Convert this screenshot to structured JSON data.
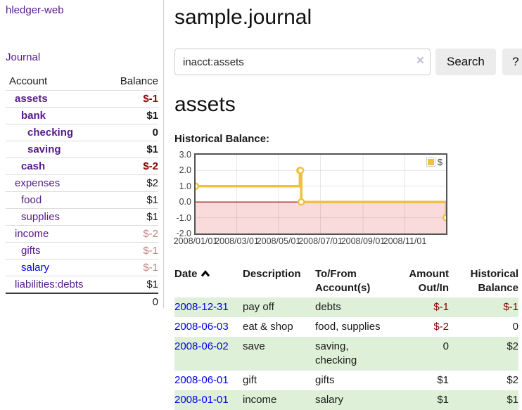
{
  "colors": {
    "link_purple": "#551a8b",
    "link_blue": "#0000ee",
    "negative": "#880000",
    "negative_faded": "#c38080",
    "row_stripe_green": "#dff0d8",
    "button_gray": "#ececec",
    "chart_border": "#545454"
  },
  "sidebar": {
    "app_title": "hledger-web",
    "journal_label": "Journal",
    "accounts": {
      "headers": {
        "account": "Account",
        "balance": "Balance"
      },
      "rows": [
        {
          "name": "assets",
          "balance": "$-1",
          "indent": 1,
          "bold": true,
          "name_color": "purple",
          "balance_style": "neg"
        },
        {
          "name": "bank",
          "balance": "$1",
          "indent": 2,
          "bold": true,
          "name_color": "purple",
          "balance_style": "pos"
        },
        {
          "name": "checking",
          "balance": "0",
          "indent": 3,
          "bold": true,
          "name_color": "purple",
          "balance_style": "pos"
        },
        {
          "name": "saving",
          "balance": "$1",
          "indent": 3,
          "bold": true,
          "name_color": "purple",
          "balance_style": "pos"
        },
        {
          "name": "cash",
          "balance": "$-2",
          "indent": 2,
          "bold": true,
          "name_color": "purple",
          "balance_style": "neg"
        },
        {
          "name": "expenses",
          "balance": "$2",
          "indent": 1,
          "bold": false,
          "name_color": "purple",
          "balance_style": "pos"
        },
        {
          "name": "food",
          "balance": "$1",
          "indent": 2,
          "bold": false,
          "name_color": "purple",
          "balance_style": "pos"
        },
        {
          "name": "supplies",
          "balance": "$1",
          "indent": 2,
          "bold": false,
          "name_color": "purple",
          "balance_style": "pos"
        },
        {
          "name": "income",
          "balance": "$-2",
          "indent": 1,
          "bold": false,
          "name_color": "purple",
          "balance_style": "neg-faded"
        },
        {
          "name": "gifts",
          "balance": "$-1",
          "indent": 2,
          "bold": false,
          "name_color": "purple",
          "balance_style": "neg-faded"
        },
        {
          "name": "salary",
          "balance": "$-1",
          "indent": 2,
          "bold": false,
          "name_color": "blue",
          "balance_style": "neg-faded"
        },
        {
          "name": "liabilities:debts",
          "balance": "$1",
          "indent": 1,
          "bold": false,
          "name_color": "purple",
          "balance_style": "pos"
        }
      ],
      "total": "0"
    }
  },
  "main": {
    "journal_title": "sample.journal",
    "search": {
      "value": "inacct:assets",
      "clear_icon": "×",
      "search_label": "Search",
      "help_label": "?"
    },
    "account_heading": "assets",
    "section_label": "Historical Balance:",
    "register": {
      "headers": {
        "date": "Date",
        "description": "Description",
        "to_from": "To/From Account(s)",
        "amount": "Amount Out/In",
        "balance": "Historical Balance"
      },
      "rows": [
        {
          "date": "2008-12-31",
          "description": "pay off",
          "to_from": "debts",
          "amount": "$-1",
          "amount_style": "neg",
          "balance": "$-1",
          "balance_style": "neg"
        },
        {
          "date": "2008-06-03",
          "description": "eat & shop",
          "to_from": "food, supplies",
          "amount": "$-2",
          "amount_style": "neg",
          "balance": "0",
          "balance_style": "pos"
        },
        {
          "date": "2008-06-02",
          "description": "save",
          "to_from": "saving, checking",
          "amount": "0",
          "amount_style": "pos",
          "balance": "$2",
          "balance_style": "pos"
        },
        {
          "date": "2008-06-01",
          "description": "gift",
          "to_from": "gifts",
          "amount": "$1",
          "amount_style": "pos",
          "balance": "$2",
          "balance_style": "pos"
        },
        {
          "date": "2008-01-01",
          "description": "income",
          "to_from": "salary",
          "amount": "$1",
          "amount_style": "pos",
          "balance": "$1",
          "balance_style": "pos"
        }
      ]
    }
  },
  "chart_data": {
    "type": "line",
    "title": "Historical Balance:",
    "step": true,
    "series": [
      {
        "name": "$",
        "color": "#edc240",
        "points": [
          {
            "date": "2008-01-01",
            "day": 0,
            "value": 1
          },
          {
            "date": "2008-06-01",
            "day": 152,
            "value": 2
          },
          {
            "date": "2008-06-02",
            "day": 153,
            "value": 2
          },
          {
            "date": "2008-06-03",
            "day": 154,
            "value": 0
          },
          {
            "date": "2008-12-31",
            "day": 365,
            "value": -1
          }
        ]
      }
    ],
    "xticks": [
      {
        "label": "2008/01/01",
        "day": 0
      },
      {
        "label": "2008/03/01",
        "day": 60
      },
      {
        "label": "2008/05/01",
        "day": 121
      },
      {
        "label": "2008/07/01",
        "day": 182
      },
      {
        "label": "2008/09/01",
        "day": 244
      },
      {
        "label": "2008/11/01",
        "day": 305
      }
    ],
    "yticks": [
      3.0,
      2.0,
      1.0,
      0.0,
      -1.0,
      -2.0
    ],
    "ylim": [
      -2,
      3
    ],
    "xlim_days": [
      0,
      365
    ],
    "grid": true,
    "negative_region_fill": "#f9dbdb",
    "zero_line_color": "#8b0000",
    "legend_position": "top-right"
  }
}
